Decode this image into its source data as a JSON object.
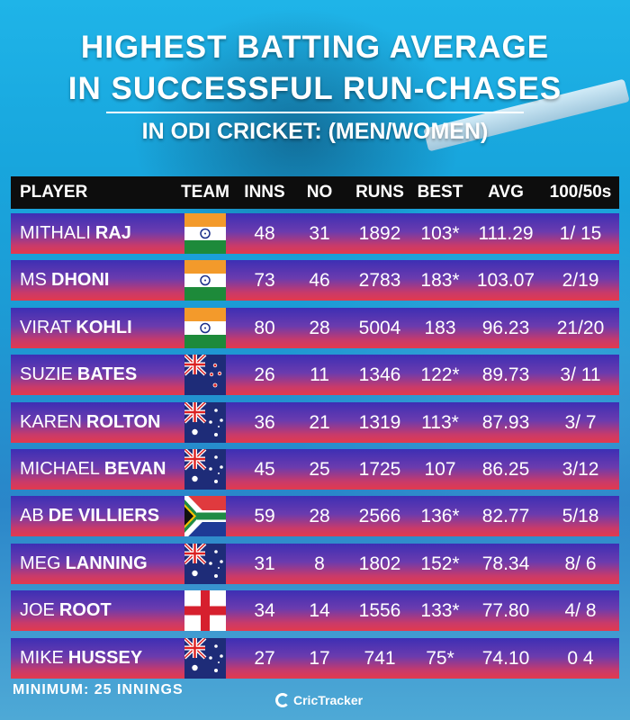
{
  "title": {
    "line1": "HIGHEST BATTING AVERAGE",
    "line2": "IN SUCCESSFUL RUN-CHASES",
    "subtitle": "IN ODI CRICKET: (MEN/WOMEN)"
  },
  "table": {
    "headers": {
      "player": "PLAYER",
      "team": "TEAM",
      "inns": "INNS",
      "no": "NO",
      "runs": "RUNS",
      "best": "BEST",
      "avg": "AVG",
      "hundreds_fifties": "100/50s"
    },
    "rows": [
      {
        "first": "MITHALI",
        "last": "RAJ",
        "flag": "india-flag",
        "inns": "48",
        "no": "31",
        "runs": "1892",
        "best": "103*",
        "avg": "111.29",
        "hf": "1/ 15"
      },
      {
        "first": "MS",
        "last": "DHONI",
        "flag": "india-flag",
        "inns": "73",
        "no": "46",
        "runs": "2783",
        "best": "183*",
        "avg": "103.07",
        "hf": "2/19"
      },
      {
        "first": "VIRAT",
        "last": "KOHLI",
        "flag": "india-flag",
        "inns": "80",
        "no": "28",
        "runs": "5004",
        "best": "183",
        "avg": "96.23",
        "hf": "21/20"
      },
      {
        "first": "SUZIE",
        "last": "BATES",
        "flag": "new-zealand-flag",
        "inns": "26",
        "no": "11",
        "runs": "1346",
        "best": "122*",
        "avg": "89.73",
        "hf": "3/ 11"
      },
      {
        "first": "KAREN",
        "last": "ROLTON",
        "flag": "australia-flag",
        "inns": "36",
        "no": "21",
        "runs": "1319",
        "best": "113*",
        "avg": "87.93",
        "hf": "3/ 7"
      },
      {
        "first": "MICHAEL",
        "last": "BEVAN",
        "flag": "australia-flag",
        "inns": "45",
        "no": "25",
        "runs": "1725",
        "best": "107",
        "avg": "86.25",
        "hf": "3/12"
      },
      {
        "first": "AB",
        "last": "DE VILLIERS",
        "flag": "south-africa-flag",
        "inns": "59",
        "no": "28",
        "runs": "2566",
        "best": "136*",
        "avg": "82.77",
        "hf": "5/18"
      },
      {
        "first": "MEG",
        "last": "LANNING",
        "flag": "australia-flag",
        "inns": "31",
        "no": "8",
        "runs": "1802",
        "best": "152*",
        "avg": "78.34",
        "hf": "8/ 6"
      },
      {
        "first": "JOE",
        "last": "ROOT",
        "flag": "england-flag",
        "inns": "34",
        "no": "14",
        "runs": "1556",
        "best": "133*",
        "avg": "77.80",
        "hf": "4/ 8"
      },
      {
        "first": "MIKE",
        "last": "HUSSEY",
        "flag": "australia-flag",
        "inns": "27",
        "no": "17",
        "runs": "741",
        "best": "75*",
        "avg": "74.10",
        "hf": "0  4"
      }
    ]
  },
  "footer": {
    "note": "MINIMUM: 25 INNINGS",
    "logo": "CricTracker"
  },
  "colors": {
    "row_top": "#3d2fb4",
    "row_bottom": "#e23a4d",
    "header_bg": "#0d0d0d"
  }
}
